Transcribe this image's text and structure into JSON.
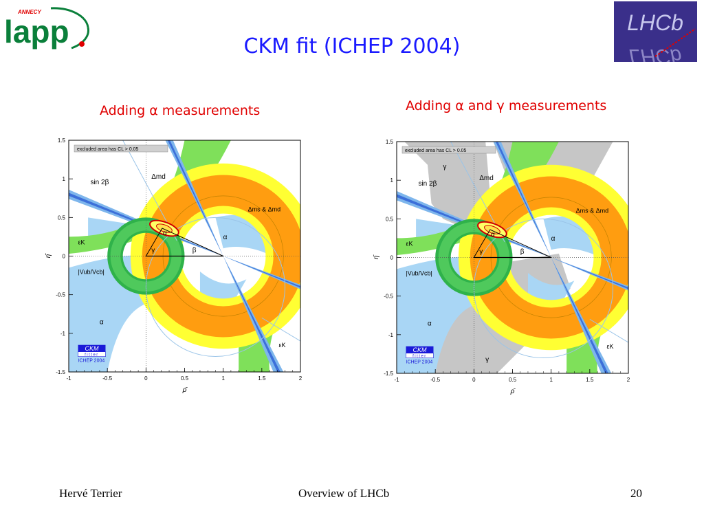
{
  "slide": {
    "title": "CKM fit (ICHEP 2004)",
    "left_subtitle": "Adding α measurements",
    "right_subtitle": "Adding α and γ measurements"
  },
  "logos": {
    "lapp_top": "ANNECY",
    "lapp_main": "lapp",
    "lhcb_text": "LHCb"
  },
  "footer": {
    "author": "Hervé Terrier",
    "center": "Overview of LHCb",
    "page": "20"
  },
  "chart_data": [
    {
      "type": "contour",
      "xlabel": "ρ̄",
      "ylabel": "η̄",
      "xlim": [
        -1,
        2
      ],
      "ylim": [
        -1.5,
        1.5
      ],
      "xticks": [
        "-1",
        "-0.5",
        "0",
        "0.5",
        "1",
        "1.5",
        "2"
      ],
      "yticks": [
        "1.5",
        "1",
        "0.5",
        "0",
        "-0.5",
        "-1",
        "-1.5"
      ],
      "legend_text": "excluded area has CL > 0.05",
      "labels": {
        "dmd": "Δmd",
        "dms": "Δms & Δmd",
        "sin2b": "sin 2β",
        "epsk": "εK",
        "vub": "|Vub/Vcb|",
        "alpha": "α",
        "beta": "β",
        "gamma": "γ"
      },
      "badge": {
        "line1": "CKM",
        "line2": "fitter",
        "line3": "ICHEP 2004"
      },
      "apex": {
        "rho": 0.21,
        "eta": 0.36
      },
      "gamma_constraint": false
    },
    {
      "type": "contour",
      "xlabel": "ρ̄",
      "ylabel": "η̄",
      "xlim": [
        -1,
        2
      ],
      "ylim": [
        -1.5,
        1.5
      ],
      "xticks": [
        "-1",
        "-0.5",
        "0",
        "0.5",
        "1",
        "1.5",
        "2"
      ],
      "yticks": [
        "1.5",
        "1",
        "0.5",
        "0",
        "-0.5",
        "-1",
        "-1.5"
      ],
      "legend_text": "excluded area has CL > 0.05",
      "labels": {
        "dmd": "Δmd",
        "dms": "Δms & Δmd",
        "sin2b": "sin 2β",
        "epsk": "εK",
        "vub": "|Vub/Vcb|",
        "alpha": "α",
        "beta": "β",
        "gamma": "γ"
      },
      "badge": {
        "line1": "CKM",
        "line2": "fitter",
        "line3": "ICHEP 2004"
      },
      "apex": {
        "rho": 0.21,
        "eta": 0.36
      },
      "gamma_constraint": true
    }
  ]
}
